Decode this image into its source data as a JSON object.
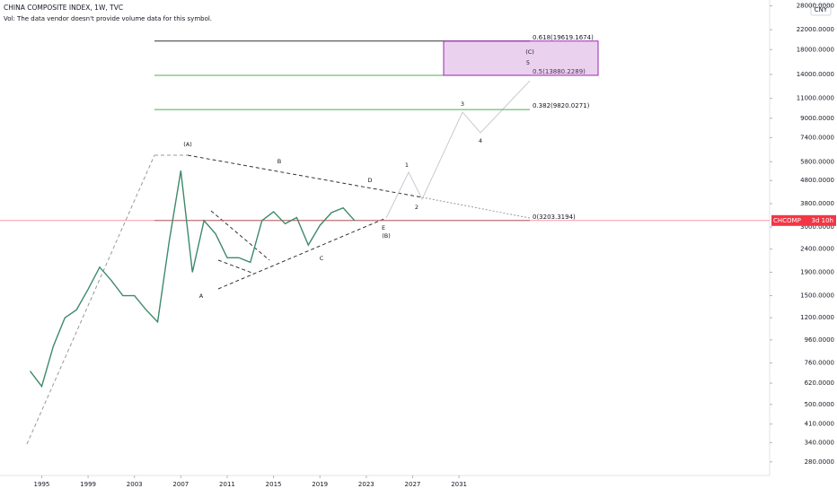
{
  "header": {
    "title": "CHINA COMPOSITE INDEX, 1W, TVC",
    "volume_note": "Vol: The data vendor doesn't provide volume data for this symbol.",
    "currency": "CNY"
  },
  "chart_data": {
    "type": "line",
    "log_scale": true,
    "color": "#3d8a6a",
    "x": [
      1994,
      1995,
      1996,
      1997,
      1998,
      1999,
      2000,
      2001,
      2002,
      2003,
      2004,
      2005,
      2006,
      2007,
      2008,
      2009,
      2010,
      2011,
      2012,
      2013,
      2014,
      2015,
      2016,
      2017,
      2018,
      2019,
      2020,
      2021,
      2022
    ],
    "values": [
      700,
      600,
      900,
      1200,
      1300,
      1600,
      2000,
      1750,
      1500,
      1500,
      1300,
      1150,
      2600,
      5300,
      1900,
      3200,
      2800,
      2200,
      2200,
      2100,
      3200,
      3500,
      3100,
      3300,
      2500,
      3050,
      3470,
      3640,
      3200
    ],
    "xlim": [
      1991.4,
      2057.8
    ],
    "xticks": [
      1995,
      1999,
      2003,
      2007,
      2011,
      2015,
      2019,
      2023,
      2027,
      2031
    ],
    "ylim": [
      244,
      29700
    ],
    "yticks": [
      {
        "value": 28000,
        "label": "28000.0000"
      },
      {
        "value": 22000,
        "label": "22000.0000"
      },
      {
        "value": 18000,
        "label": "18000.0000"
      },
      {
        "value": 14000,
        "label": "14000.0000"
      },
      {
        "value": 11000,
        "label": "11000.0000"
      },
      {
        "value": 9000,
        "label": "9000.0000"
      },
      {
        "value": 7400,
        "label": "7400.0000"
      },
      {
        "value": 5800,
        "label": "5800.0000"
      },
      {
        "value": 4800,
        "label": "4800.0000"
      },
      {
        "value": 3800,
        "label": "3800.0000"
      },
      {
        "value": 3000,
        "label": "3000.0000"
      },
      {
        "value": 2400,
        "label": "2400.0000"
      },
      {
        "value": 1900,
        "label": "1900.0000"
      },
      {
        "value": 1500,
        "label": "1500.0000"
      },
      {
        "value": 1200,
        "label": "1200.0000"
      },
      {
        "value": 960,
        "label": "960.0000"
      },
      {
        "value": 760,
        "label": "760.0000"
      },
      {
        "value": 620,
        "label": "620.0000"
      },
      {
        "value": 500,
        "label": "500.0000"
      },
      {
        "value": 410,
        "label": "410.0000"
      },
      {
        "value": 340,
        "label": "340.0000"
      },
      {
        "value": 280,
        "label": "280.0000"
      }
    ],
    "fib_levels": [
      {
        "value": 19619.1674,
        "label": "0.618(19619.1674)",
        "color": "#333333"
      },
      {
        "value": 13880.2289,
        "label": "0.5(13880.2289)",
        "color": "#4caf50"
      },
      {
        "value": 9820.0271,
        "label": "0.382(9820.0271)",
        "color": "#4caf50"
      },
      {
        "value": 3203.3194,
        "label": "0(3203.3194)",
        "color": "#888888"
      }
    ],
    "price_line": {
      "value": 3203.3194,
      "color": "#f23645",
      "symbol": "CHCOMP",
      "countdown": "3d 10h"
    },
    "wave_labels": [
      "(A)",
      "A",
      "B",
      "C",
      "D",
      "E",
      "(B)",
      "1",
      "2",
      "3",
      "4",
      "5",
      "(C)"
    ]
  }
}
